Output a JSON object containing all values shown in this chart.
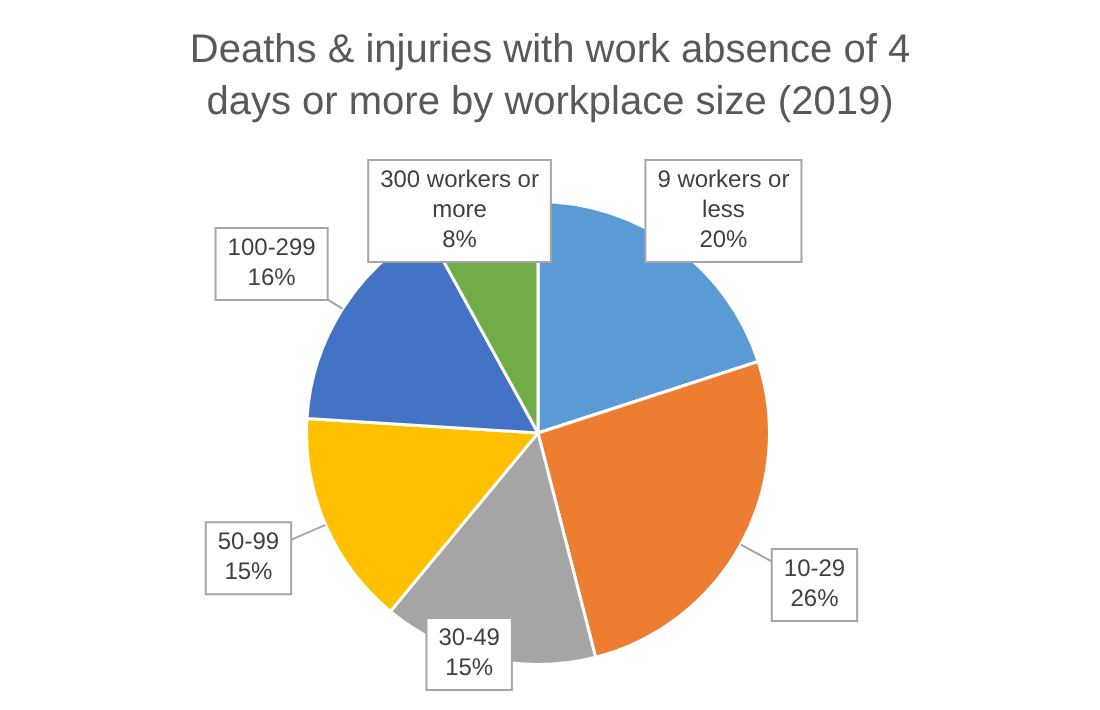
{
  "chart_data": {
    "type": "pie",
    "title": "Deaths & injuries with work absence of 4 days or more by workplace size (2019)",
    "categories": [
      "9 workers or less",
      "10-29",
      "30-49",
      "50-99",
      "100-299",
      "300 workers or more"
    ],
    "values": [
      20,
      26,
      15,
      15,
      16,
      8
    ],
    "value_labels": [
      "20%",
      "26%",
      "15%",
      "15%",
      "16%",
      "8%"
    ],
    "colors": [
      "#5b9bd5",
      "#ed7d31",
      "#a5a5a5",
      "#ffc000",
      "#4472c4",
      "#70ad47"
    ],
    "legend": false
  }
}
